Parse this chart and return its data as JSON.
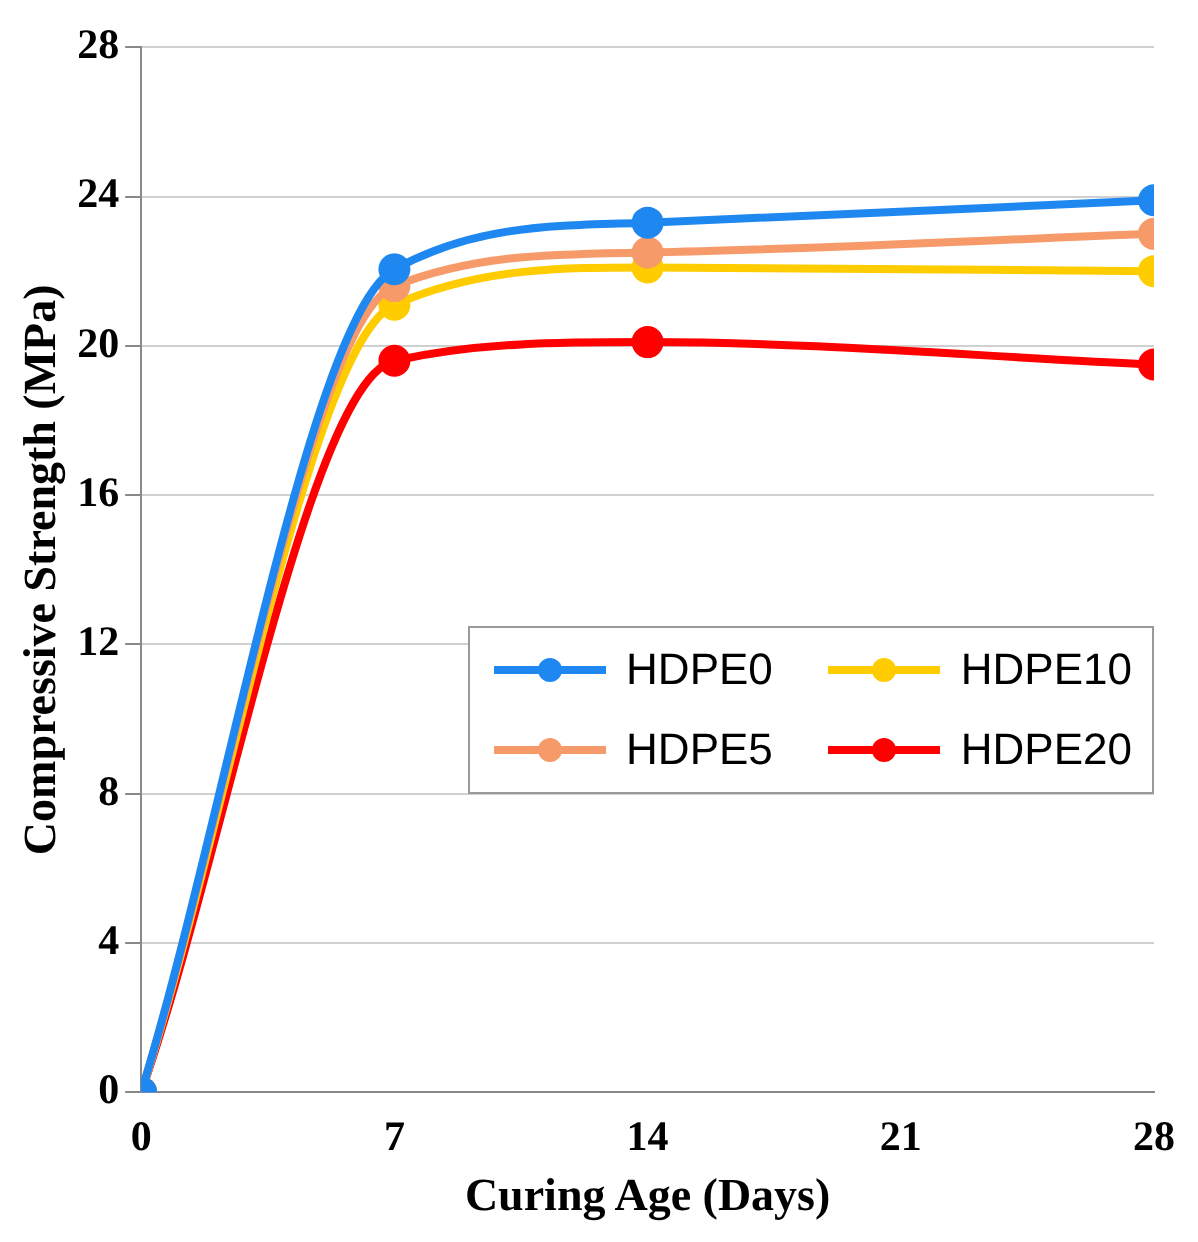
{
  "chart_data": {
    "type": "line",
    "xlabel": "Curing Age (Days)",
    "ylabel": "Compressive Strength (MPa)",
    "x": [
      0,
      7,
      14,
      28
    ],
    "xlim": [
      0,
      28
    ],
    "xticks": [
      0,
      7,
      14,
      21,
      28
    ],
    "ylim": [
      0,
      28
    ],
    "yticks": [
      0,
      4,
      8,
      12,
      16,
      20,
      24,
      28
    ],
    "grid": "y",
    "legend": "center right",
    "marker": "circle",
    "line_style": "solid",
    "series": [
      {
        "name": "HDPE0",
        "color": "#1e88f0",
        "values": [
          0,
          22.05,
          23.3,
          23.9
        ]
      },
      {
        "name": "HDPE5",
        "color": "#f79a6a",
        "values": [
          0,
          21.6,
          22.5,
          23.0
        ]
      },
      {
        "name": "HDPE10",
        "color": "#ffcc00",
        "values": [
          0,
          21.1,
          22.1,
          22.0
        ]
      },
      {
        "name": "HDPE20",
        "color": "#ff0000",
        "values": [
          0,
          19.6,
          20.1,
          19.5
        ]
      }
    ]
  }
}
